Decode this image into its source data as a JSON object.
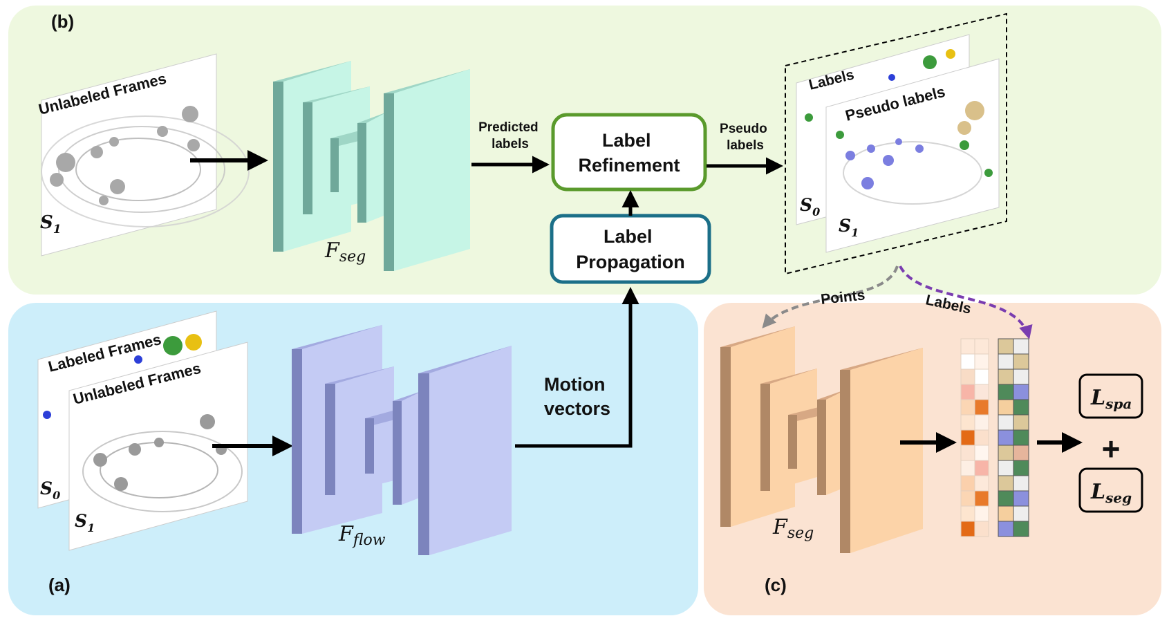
{
  "panels": {
    "b": {
      "tag": "(b)",
      "color": "#eef8df"
    },
    "a": {
      "tag": "(a)",
      "color": "#cdeefa"
    },
    "c": {
      "tag": "(c)",
      "color": "#fbe3d2"
    }
  },
  "panel_b": {
    "frame_label": "Unlabeled  Frames",
    "frame_symbol": "S",
    "frame_subscript": "1",
    "network_name": "F",
    "network_subscript": "seg",
    "edge_predicted": [
      "Predicted",
      "labels"
    ],
    "refinement": [
      "Label",
      "Refinement"
    ],
    "propagation": [
      "Label",
      "Propagation"
    ],
    "edge_pseudo": [
      "Pseudo",
      "labels"
    ],
    "stack_back_label": "Labels",
    "stack_front_label": "Pseudo labels",
    "stack_back_symbol": "S",
    "stack_back_subscript": "0",
    "stack_front_symbol": "S",
    "stack_front_subscript": "1"
  },
  "panel_a": {
    "back_frame_label": "Labeled  Frames",
    "front_frame_label": "Unlabeled  Frames",
    "back_symbol": "S",
    "back_subscript": "0",
    "front_symbol": "S",
    "front_subscript": "1",
    "network_name": "F",
    "network_subscript": "flow",
    "motion": [
      "Motion",
      "vectors"
    ]
  },
  "panel_c": {
    "edge_points": "Points",
    "edge_labels": "Labels",
    "network_name": "F",
    "network_subscript": "seg",
    "loss_spa_symbol": "L",
    "loss_spa_subscript": "spa",
    "plus": "+",
    "loss_seg_symbol": "L",
    "loss_seg_subscript": "seg"
  },
  "colors": {
    "seg_net": "#c6f5e6",
    "flow_net": "#c4cbf4",
    "c_net": "#fcd3a8",
    "refine_border": "#5a9a2c",
    "propagate_border": "#1b6f88",
    "arrow": "#000000",
    "points_arrow": "#8a8a8a",
    "labels_arrow": "#7a3db0"
  }
}
